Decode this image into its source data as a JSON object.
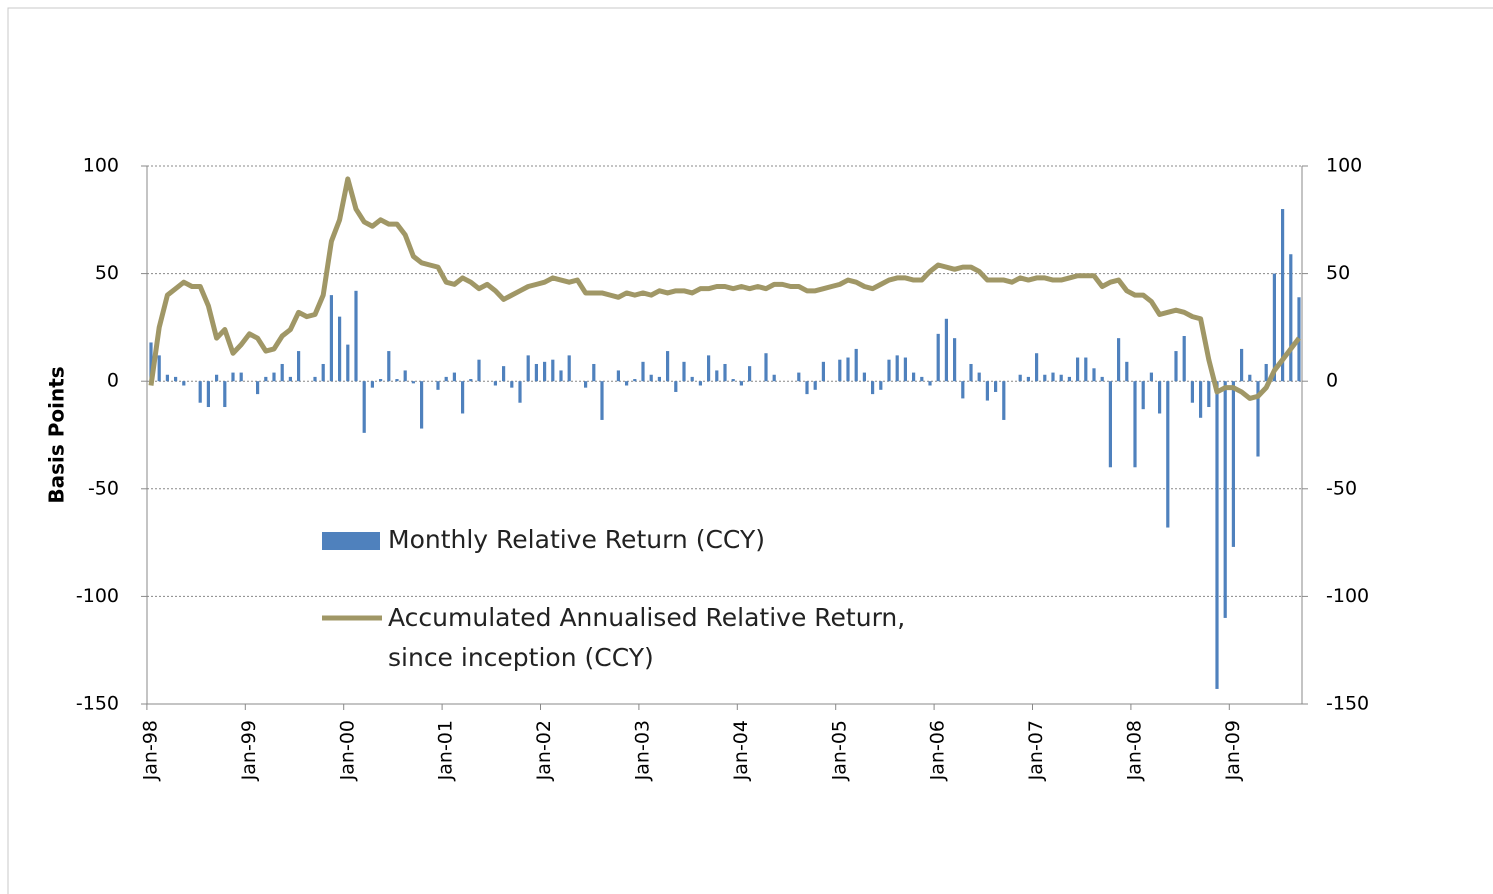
{
  "chart_data": {
    "type": "bar_line",
    "y_label": "Basis Points",
    "categories": [
      "Jan-98",
      null,
      null,
      null,
      null,
      null,
      null,
      null,
      null,
      null,
      null,
      null,
      "Jan-99",
      null,
      null,
      null,
      null,
      null,
      null,
      null,
      null,
      null,
      null,
      null,
      "Jan-00",
      null,
      null,
      null,
      null,
      null,
      null,
      null,
      null,
      null,
      null,
      null,
      "Jan-01",
      null,
      null,
      null,
      null,
      null,
      null,
      null,
      null,
      null,
      null,
      null,
      "Jan-02",
      null,
      null,
      null,
      null,
      null,
      null,
      null,
      null,
      null,
      null,
      null,
      "Jan-03",
      null,
      null,
      null,
      null,
      null,
      null,
      null,
      null,
      null,
      null,
      null,
      "Jan-04",
      null,
      null,
      null,
      null,
      null,
      null,
      null,
      null,
      null,
      null,
      null,
      "Jan-05",
      null,
      null,
      null,
      null,
      null,
      null,
      null,
      null,
      null,
      null,
      null,
      "Jan-06",
      null,
      null,
      null,
      null,
      null,
      null,
      null,
      null,
      null,
      null,
      null,
      "Jan-07",
      null,
      null,
      null,
      null,
      null,
      null,
      null,
      null,
      null,
      null,
      null,
      "Jan-08",
      null,
      null,
      null,
      null,
      null,
      null,
      null,
      null,
      null,
      null,
      null,
      "Jan-09",
      null,
      null,
      null,
      null,
      null,
      null,
      null,
      null
    ],
    "series": [
      {
        "name": "Monthly Relative Return (CCY)",
        "type": "bar",
        "color": "#4f81bd",
        "values": [
          18,
          12,
          3,
          2,
          -2,
          0,
          -10,
          -12,
          3,
          -12,
          4,
          4,
          0,
          -6,
          2,
          4,
          8,
          2,
          14,
          0,
          2,
          8,
          40,
          30,
          17,
          42,
          -24,
          -3,
          1,
          14,
          1,
          5,
          -1,
          -22,
          0,
          -4,
          2,
          4,
          -15,
          1,
          10,
          0,
          -2,
          7,
          -3,
          -10,
          12,
          8,
          9,
          10,
          5,
          12,
          0,
          -3,
          8,
          -18,
          0,
          5,
          -2,
          1,
          9,
          3,
          2,
          14,
          -5,
          9,
          2,
          -2,
          12,
          5,
          8,
          1,
          -2,
          7,
          0,
          13,
          3,
          0,
          0,
          4,
          -6,
          -4,
          9,
          0,
          10,
          11,
          15,
          4,
          -6,
          -4,
          10,
          12,
          11,
          4,
          2,
          -2,
          22,
          29,
          20,
          -8,
          8,
          4,
          -9,
          -5,
          -18,
          0,
          3,
          2,
          13,
          3,
          4,
          3,
          2,
          11,
          11,
          6,
          2,
          -40,
          20,
          9,
          -40,
          -13,
          4,
          -15,
          -68,
          14,
          21,
          -10,
          -17,
          -12,
          -143,
          -110,
          -77,
          15,
          3,
          -35,
          8,
          50,
          80,
          59,
          39
        ]
      },
      {
        "name": "Accumulated Annualised Relative Return, since inception (CCY)",
        "type": "line",
        "color": "#a09766",
        "axis": "y2",
        "values": [
          -2,
          25,
          40,
          43,
          46,
          44,
          44,
          35,
          20,
          24,
          13,
          17,
          22,
          20,
          14,
          15,
          21,
          24,
          32,
          30,
          31,
          40,
          65,
          75,
          94,
          80,
          74,
          72,
          75,
          73,
          73,
          68,
          58,
          55,
          54,
          53,
          46,
          45,
          48,
          46,
          43,
          45,
          42,
          38,
          40,
          42,
          44,
          45,
          46,
          48,
          47,
          46,
          47,
          41,
          41,
          41,
          40,
          39,
          41,
          40,
          41,
          40,
          42,
          41,
          42,
          42,
          41,
          43,
          43,
          44,
          44,
          43,
          44,
          43,
          44,
          43,
          45,
          45,
          44,
          44,
          42,
          42,
          43,
          44,
          45,
          47,
          46,
          44,
          43,
          45,
          47,
          48,
          48,
          47,
          47,
          51,
          54,
          53,
          52,
          53,
          53,
          51,
          47,
          47,
          47,
          46,
          48,
          47,
          48,
          48,
          47,
          47,
          48,
          49,
          49,
          49,
          44,
          46,
          47,
          42,
          40,
          40,
          37,
          31,
          32,
          33,
          32,
          30,
          29,
          10,
          -5,
          -3,
          -3,
          -5,
          -8,
          -7,
          -3,
          5,
          10,
          15,
          20
        ]
      }
    ],
    "ylim": [
      -150,
      100
    ],
    "yticks": [
      -150,
      -100,
      -50,
      0,
      50,
      100
    ],
    "y2lim": [
      -150,
      100
    ],
    "y2ticks": [
      -150,
      -100,
      -50,
      0,
      50,
      100
    ],
    "grid": true
  }
}
